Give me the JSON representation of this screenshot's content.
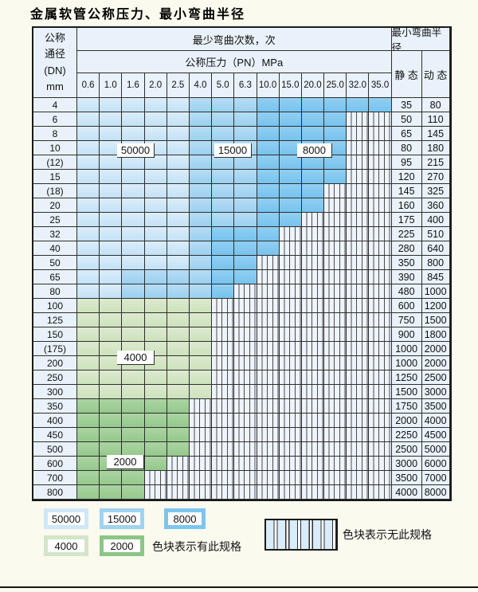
{
  "title": "金属软管公称压力、最小弯曲半径",
  "table": {
    "header": {
      "dn_lines": [
        "公称",
        "通径",
        "(DN)",
        "mm"
      ],
      "bend_cycles": "最少弯曲次数，次",
      "pressure": "公称压力（PN）MPa",
      "radius": "最小弯曲半径",
      "static_label": "静 态",
      "dynamic_label": "动 态",
      "pressures": [
        "0.6",
        "1.0",
        "1.6",
        "2.0",
        "2.5",
        "4.0",
        "5.0",
        "6.3",
        "10.0",
        "15.0",
        "20.0",
        "25.0",
        "32.0",
        "35.0"
      ]
    },
    "cell_codes": {
      "L": "50000 band (light blue)",
      "M": "15000 band (medium blue)",
      "D": "8000 band (dark blue)",
      "G": "4000 band (light green)",
      "N": "2000 band (medium green)",
      "X": "no specification (hatched)"
    },
    "rows": [
      {
        "dn": "4",
        "cells": "LLLLLMMMDDDDDD",
        "static": "35",
        "dynamic": "80"
      },
      {
        "dn": "6",
        "cells": "LLLLLMMMDDDDXX",
        "static": "50",
        "dynamic": "110"
      },
      {
        "dn": "8",
        "cells": "LLLLLMMMDDDDXX",
        "static": "65",
        "dynamic": "145"
      },
      {
        "dn": "10",
        "cells": "LLLLLMMMDDDDXX",
        "static": "80",
        "dynamic": "180"
      },
      {
        "dn": "(12)",
        "cells": "LLLLLMMMDDDDXX",
        "static": "95",
        "dynamic": "215"
      },
      {
        "dn": "15",
        "cells": "LLLLLMMMDDDDXX",
        "static": "120",
        "dynamic": "270"
      },
      {
        "dn": "(18)",
        "cells": "LLLLLMMMDDDXXX",
        "static": "145",
        "dynamic": "325"
      },
      {
        "dn": "20",
        "cells": "LLLLLMMMDDDXXX",
        "static": "160",
        "dynamic": "360"
      },
      {
        "dn": "25",
        "cells": "LLLLLMMMDDXXXX",
        "static": "175",
        "dynamic": "400"
      },
      {
        "dn": "32",
        "cells": "LLLLLMDDDXXXXX",
        "static": "225",
        "dynamic": "510"
      },
      {
        "dn": "40",
        "cells": "LLLLLMDDDXXXXX",
        "static": "280",
        "dynamic": "640"
      },
      {
        "dn": "50",
        "cells": "LLLLLMDDXXXXXX",
        "static": "350",
        "dynamic": "800"
      },
      {
        "dn": "65",
        "cells": "LLMMMMDDXXXXXX",
        "static": "390",
        "dynamic": "845"
      },
      {
        "dn": "80",
        "cells": "LLMMMMDXXXXXXX",
        "static": "480",
        "dynamic": "1000"
      },
      {
        "dn": "100",
        "cells": "GGGGGGXXXXXXXX",
        "static": "600",
        "dynamic": "1200"
      },
      {
        "dn": "125",
        "cells": "GGGGGGXXXXXXXX",
        "static": "750",
        "dynamic": "1500"
      },
      {
        "dn": "150",
        "cells": "GGGGGGXXXXXXXX",
        "static": "900",
        "dynamic": "1800"
      },
      {
        "dn": "(175)",
        "cells": "GGGGGGXXXXXXXX",
        "static": "1000",
        "dynamic": "2000"
      },
      {
        "dn": "200",
        "cells": "GGGGGGXXXXXXXX",
        "static": "1000",
        "dynamic": "2000"
      },
      {
        "dn": "250",
        "cells": "GGGGGGXXXXXXXX",
        "static": "1250",
        "dynamic": "2500"
      },
      {
        "dn": "300",
        "cells": "GGGGGGXXXXXXXX",
        "static": "1500",
        "dynamic": "3000"
      },
      {
        "dn": "350",
        "cells": "NNNNNXXXXXXXXX",
        "static": "1750",
        "dynamic": "3500"
      },
      {
        "dn": "400",
        "cells": "NNNNNXXXXXXXXX",
        "static": "2000",
        "dynamic": "4000"
      },
      {
        "dn": "450",
        "cells": "NNNNNXXXXXXXXX",
        "static": "2250",
        "dynamic": "4500"
      },
      {
        "dn": "500",
        "cells": "NNNNNXXXXXXXXX",
        "static": "2500",
        "dynamic": "5000"
      },
      {
        "dn": "600",
        "cells": "NNNNXXXXXXXXXX",
        "static": "3000",
        "dynamic": "6000"
      },
      {
        "dn": "700",
        "cells": "NNNXXXXXXXXXXX",
        "static": "3500",
        "dynamic": "7000"
      },
      {
        "dn": "800",
        "cells": "NNNXXXXXXXXXXX",
        "static": "4000",
        "dynamic": "8000"
      }
    ],
    "overlays": [
      {
        "label": "50000"
      },
      {
        "label": "15000"
      },
      {
        "label": "8000"
      },
      {
        "label": "4000"
      },
      {
        "label": "2000"
      }
    ]
  },
  "legend": {
    "items": [
      {
        "label": "50000",
        "color": "#cfe8f8"
      },
      {
        "label": "15000",
        "color": "#9fd3f0"
      },
      {
        "label": "8000",
        "color": "#7cc6ee"
      },
      {
        "label": "4000",
        "color": "#d3e6c8"
      },
      {
        "label": "2000",
        "color": "#8cc687"
      }
    ],
    "has_spec_note": "色块表示有此规格",
    "no_spec_note": "色块表示无此规格"
  },
  "colors": {
    "band_50000": "#cfe7f7",
    "band_15000": "#a6d6f2",
    "band_8000": "#7cc5ef",
    "band_4000": "#d4e6c6",
    "band_2000": "#9ecb96",
    "header_bg": "#e9f2fa",
    "grid_line": "#2e2e2e",
    "page_bg": "#fafaef"
  }
}
